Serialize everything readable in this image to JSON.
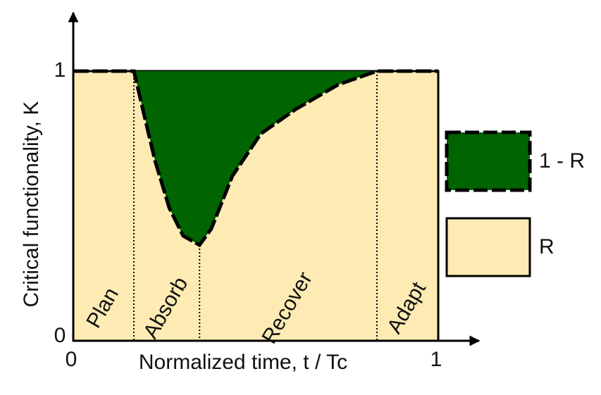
{
  "chart_data": {
    "type": "area",
    "x_label": "Normalized time, t / Tc",
    "y_label": "Critical functionality, K",
    "x": [
      0,
      0.166,
      0.195,
      0.224,
      0.263,
      0.301,
      0.346,
      0.378,
      0.436,
      0.514,
      0.61,
      0.726,
      0.832,
      1
    ],
    "values": [
      1,
      1,
      0.833,
      0.668,
      0.493,
      0.389,
      0.355,
      0.415,
      0.611,
      0.768,
      0.859,
      0.95,
      1,
      1
    ],
    "xlim": [
      0,
      1
    ],
    "ylim": [
      0,
      1
    ],
    "xticks": [
      0,
      1
    ],
    "yticks": [
      0,
      1
    ],
    "phases": [
      {
        "name": "Plan",
        "start": 0,
        "end": 0.166
      },
      {
        "name": "Absorb",
        "start": 0.166,
        "end": 0.346
      },
      {
        "name": "Recover",
        "start": 0.346,
        "end": 0.832
      },
      {
        "name": "Adapt",
        "start": 0.832,
        "end": 1
      }
    ],
    "legend": [
      {
        "name": "1 - R",
        "color": "#006400"
      },
      {
        "name": "R",
        "color": "#fdebb3"
      }
    ]
  }
}
